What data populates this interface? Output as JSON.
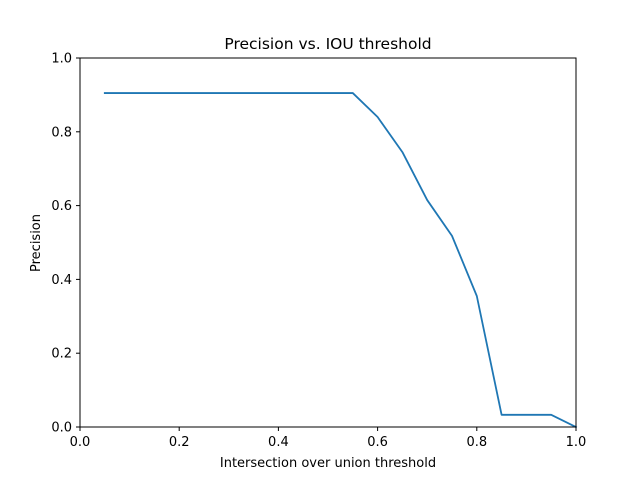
{
  "chart_data": {
    "type": "line",
    "title": "Precision vs. IOU threshold",
    "xlabel": "Intersection over union threshold",
    "ylabel": "Precision",
    "xlim": [
      0.0,
      1.0
    ],
    "ylim": [
      0.0,
      1.0
    ],
    "xticks": [
      "0.0",
      "0.2",
      "0.4",
      "0.6",
      "0.8",
      "1.0"
    ],
    "yticks": [
      "0.0",
      "0.2",
      "0.4",
      "0.6",
      "0.8",
      "1.0"
    ],
    "grid": false,
    "series": [
      {
        "color": "#1f77b4",
        "x": [
          0.05,
          0.1,
          0.15,
          0.2,
          0.25,
          0.3,
          0.35,
          0.4,
          0.45,
          0.5,
          0.55,
          0.6,
          0.65,
          0.7,
          0.75,
          0.8,
          0.85,
          0.9,
          0.95,
          1.0
        ],
        "y": [
          0.905,
          0.905,
          0.905,
          0.905,
          0.905,
          0.905,
          0.905,
          0.905,
          0.905,
          0.905,
          0.905,
          0.84,
          0.745,
          0.615,
          0.518,
          0.355,
          0.033,
          0.033,
          0.033,
          0.0
        ]
      }
    ]
  }
}
